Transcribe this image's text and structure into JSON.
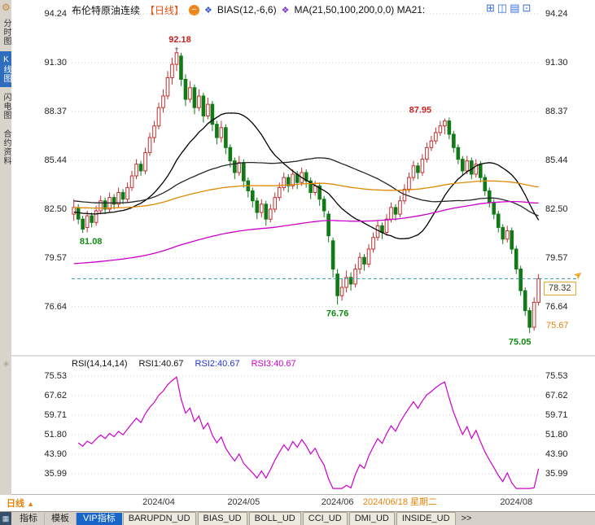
{
  "header": {
    "title": "布伦特原油连续",
    "period_tag": "【日线】",
    "minus_icon": "−",
    "bias_icon": "❖",
    "bias_label": "BIAS(12,-6,6)",
    "ma_icon": "❖",
    "ma_label": "MA(21,50,100,200,0,0) MA21:",
    "gear_icon": "⚙",
    "window_icons": [
      "⊞",
      "◫",
      "▤",
      "⊡"
    ]
  },
  "sidebar": {
    "items": [
      {
        "label": "分时图",
        "selected": false
      },
      {
        "label": "K线图",
        "selected": true
      },
      {
        "label": "闪电图",
        "selected": false
      },
      {
        "label": "合约资料",
        "selected": false
      }
    ]
  },
  "main_chart": {
    "y_ticks": [
      "94.24",
      "91.30",
      "88.37",
      "85.44",
      "82.50",
      "79.57",
      "76.64"
    ],
    "price_tag": "78.32",
    "settlement_label": "75.67",
    "arrow_icon": "➤"
  },
  "rsi_pane": {
    "icon": "✳",
    "params_label": "RSI(14,14,14)",
    "rsi1_label": "RSI1:40.67",
    "rsi2_label": "RSI2:40.67",
    "rsi3_label": "RSI3:40.67",
    "y_ticks": [
      "75.53",
      "67.62",
      "59.71",
      "51.80",
      "43.90",
      "35.99"
    ]
  },
  "x_axis": {
    "ticks": [
      {
        "label": "2024/04",
        "index": 19,
        "highlight": false
      },
      {
        "label": "2024/05",
        "index": 38,
        "highlight": false
      },
      {
        "label": "2024/06",
        "index": 59,
        "highlight": false
      },
      {
        "label": "2024/06/18 星期二",
        "index": 73,
        "highlight": true
      },
      {
        "label": "2024/08",
        "index": 99,
        "highlight": false
      }
    ],
    "period_label": "日线",
    "period_arrow": "▲"
  },
  "bottom_bar": {
    "corner_icon": "▦",
    "tabs": [
      {
        "label": "指标",
        "style": "plain",
        "selected": false
      },
      {
        "label": "模板",
        "style": "plain",
        "selected": false
      },
      {
        "label": "VIP指标",
        "style": "plain",
        "selected": true
      },
      {
        "label": "BARUPDN_UD",
        "style": "tab",
        "selected": false
      },
      {
        "label": "BIAS_UD",
        "style": "tab",
        "selected": false
      },
      {
        "label": "BOLL_UD",
        "style": "tab",
        "selected": false
      },
      {
        "label": "CCI_UD",
        "style": "tab",
        "selected": false
      },
      {
        "label": "DMI_UD",
        "style": "tab",
        "selected": false
      },
      {
        "label": "INSIDE_UD",
        "style": "tab",
        "selected": false
      },
      {
        "label": ">>",
        "style": "more",
        "selected": false
      }
    ]
  },
  "colors": {
    "up": "#c03030",
    "down": "#117a17",
    "rsi": "#cc00cc",
    "dashed_line": "#2f9bb0",
    "grid": "#cccccc",
    "annotation_up": "#cc2222",
    "annotation_down": "#118a11",
    "accent_orange": "#e8820a",
    "tab_selected_bg": "#1765c8",
    "sidebar_selected_bg": "#2e6cbe"
  },
  "chart_data": {
    "type": "candlestick+rsi",
    "symbol": "布伦特原油连续",
    "period": "日线",
    "last_price": 78.32,
    "prev_settlement": 75.67,
    "price_axis_ticks": [
      94.24,
      91.3,
      88.37,
      85.44,
      82.5,
      79.57,
      76.64
    ],
    "rsi_axis_ticks": [
      75.53,
      67.62,
      59.71,
      51.8,
      43.9,
      35.99
    ],
    "annotations": [
      {
        "text": "92.18",
        "index": 23,
        "price": 92.18,
        "type": "high",
        "marker": "+",
        "dx": 4
      },
      {
        "text": "87.95",
        "index": 83,
        "price": 87.95,
        "type": "high",
        "dx": -30
      },
      {
        "text": "81.08",
        "index": 2,
        "price": 81.08,
        "type": "low",
        "dx": 10
      },
      {
        "text": "76.76",
        "index": 59,
        "price": 76.76,
        "type": "low",
        "dx": 0
      },
      {
        "text": "75.05",
        "index": 102,
        "price": 75.05,
        "type": "low",
        "dx": -12
      }
    ],
    "ma_lines": [
      {
        "name": "MA21",
        "color": "#000000",
        "window": 21,
        "seed": 82.3
      },
      {
        "name": "MA50",
        "color": "#26262a",
        "window": 50,
        "seed": 83.0
      },
      {
        "name": "MA100",
        "color": "#e08a00",
        "window": 100,
        "seed": 82.6
      },
      {
        "name": "MA200",
        "color": "#cc00cc",
        "window": 130,
        "seed": 79.2
      }
    ],
    "rsi_window": 14,
    "candles": [
      [
        82.2,
        83.1,
        81.8,
        82.6
      ],
      [
        82.6,
        82.8,
        81.6,
        81.9
      ],
      [
        81.9,
        82.1,
        81.08,
        81.3
      ],
      [
        81.4,
        82.4,
        81.1,
        82.1
      ],
      [
        82.1,
        82.3,
        81.4,
        81.7
      ],
      [
        81.7,
        82.7,
        81.5,
        82.4
      ],
      [
        82.4,
        83.3,
        82.2,
        83.0
      ],
      [
        83.0,
        83.2,
        82.2,
        82.5
      ],
      [
        82.5,
        83.5,
        82.3,
        83.2
      ],
      [
        83.2,
        83.4,
        82.5,
        82.8
      ],
      [
        82.8,
        83.8,
        82.6,
        83.5
      ],
      [
        83.5,
        83.7,
        82.8,
        83.1
      ],
      [
        83.1,
        84.1,
        82.9,
        83.8
      ],
      [
        83.8,
        84.8,
        83.6,
        84.5
      ],
      [
        84.5,
        85.5,
        84.3,
        85.2
      ],
      [
        85.2,
        85.4,
        84.5,
        84.8
      ],
      [
        84.8,
        86.2,
        84.6,
        85.9
      ],
      [
        85.9,
        87.1,
        85.7,
        86.8
      ],
      [
        86.8,
        87.8,
        86.5,
        87.5
      ],
      [
        87.5,
        88.9,
        87.3,
        88.6
      ],
      [
        88.6,
        89.7,
        88.3,
        89.3
      ],
      [
        89.3,
        90.8,
        89.1,
        90.4
      ],
      [
        90.4,
        91.6,
        90.0,
        91.2
      ],
      [
        91.2,
        92.18,
        90.8,
        91.9
      ],
      [
        91.7,
        91.9,
        89.9,
        90.3
      ],
      [
        90.3,
        90.6,
        88.7,
        89.1
      ],
      [
        89.1,
        90.2,
        88.9,
        89.8
      ],
      [
        89.8,
        90.0,
        88.2,
        88.6
      ],
      [
        88.6,
        89.7,
        88.4,
        89.3
      ],
      [
        89.3,
        89.5,
        87.7,
        88.1
      ],
      [
        88.1,
        89.2,
        87.9,
        88.8
      ],
      [
        88.8,
        89.0,
        87.2,
        87.6
      ],
      [
        87.6,
        87.8,
        86.4,
        86.8
      ],
      [
        86.8,
        87.8,
        86.5,
        87.4
      ],
      [
        87.4,
        87.6,
        85.8,
        86.2
      ],
      [
        86.2,
        86.4,
        85.0,
        85.4
      ],
      [
        85.4,
        85.6,
        84.3,
        84.7
      ],
      [
        84.7,
        85.7,
        84.5,
        85.3
      ],
      [
        85.3,
        85.5,
        83.8,
        84.2
      ],
      [
        84.2,
        84.4,
        83.2,
        83.6
      ],
      [
        83.6,
        83.8,
        82.6,
        83.0
      ],
      [
        83.0,
        83.2,
        81.9,
        82.3
      ],
      [
        82.3,
        83.1,
        82.0,
        82.8
      ],
      [
        82.8,
        83.0,
        81.5,
        81.9
      ],
      [
        81.9,
        82.8,
        81.7,
        82.5
      ],
      [
        82.5,
        83.5,
        82.3,
        83.2
      ],
      [
        83.2,
        84.1,
        83.0,
        83.8
      ],
      [
        83.8,
        84.7,
        83.6,
        84.4
      ],
      [
        84.4,
        84.6,
        83.5,
        83.9
      ],
      [
        83.9,
        84.9,
        83.7,
        84.6
      ],
      [
        84.6,
        84.8,
        83.7,
        84.1
      ],
      [
        84.1,
        85.0,
        83.9,
        84.7
      ],
      [
        84.7,
        84.9,
        83.8,
        84.2
      ],
      [
        84.2,
        84.4,
        83.1,
        83.5
      ],
      [
        83.5,
        84.2,
        83.3,
        83.9
      ],
      [
        83.9,
        84.1,
        82.7,
        83.1
      ],
      [
        83.1,
        83.3,
        82.0,
        82.4
      ],
      [
        82.2,
        82.4,
        80.5,
        80.9
      ],
      [
        80.6,
        80.8,
        78.4,
        78.9
      ],
      [
        78.6,
        78.9,
        76.76,
        77.3
      ],
      [
        77.3,
        78.3,
        77.0,
        77.8
      ],
      [
        77.8,
        78.8,
        77.5,
        78.4
      ],
      [
        78.4,
        78.7,
        77.6,
        78.0
      ],
      [
        78.0,
        79.2,
        77.8,
        78.9
      ],
      [
        78.9,
        79.9,
        78.6,
        79.6
      ],
      [
        79.6,
        79.8,
        78.8,
        79.2
      ],
      [
        79.2,
        80.4,
        79.0,
        80.1
      ],
      [
        80.1,
        81.1,
        79.9,
        80.8
      ],
      [
        80.8,
        81.8,
        80.6,
        81.5
      ],
      [
        81.5,
        81.7,
        80.7,
        81.1
      ],
      [
        81.1,
        82.2,
        80.9,
        81.9
      ],
      [
        81.9,
        82.9,
        81.7,
        82.6
      ],
      [
        82.6,
        82.8,
        81.8,
        82.2
      ],
      [
        82.2,
        83.3,
        82.0,
        83.0
      ],
      [
        83.0,
        84.0,
        82.8,
        83.7
      ],
      [
        83.7,
        84.7,
        83.5,
        84.4
      ],
      [
        84.4,
        85.4,
        84.2,
        85.1
      ],
      [
        85.1,
        85.3,
        84.3,
        84.7
      ],
      [
        84.7,
        85.8,
        84.5,
        85.5
      ],
      [
        85.5,
        86.5,
        85.3,
        86.2
      ],
      [
        86.2,
        86.9,
        86.0,
        86.6
      ],
      [
        86.6,
        87.4,
        86.4,
        87.1
      ],
      [
        87.1,
        87.8,
        86.9,
        87.5
      ],
      [
        87.5,
        87.95,
        87.0,
        87.8
      ],
      [
        87.8,
        88.0,
        86.7,
        87.0
      ],
      [
        87.0,
        87.2,
        85.9,
        86.2
      ],
      [
        86.2,
        86.4,
        85.2,
        85.5
      ],
      [
        85.5,
        85.7,
        84.5,
        84.8
      ],
      [
        84.8,
        85.7,
        84.6,
        85.4
      ],
      [
        85.4,
        85.6,
        84.3,
        84.6
      ],
      [
        84.6,
        85.5,
        84.4,
        85.2
      ],
      [
        85.2,
        85.4,
        84.1,
        84.4
      ],
      [
        84.4,
        84.6,
        83.3,
        83.6
      ],
      [
        83.6,
        83.8,
        82.6,
        82.9
      ],
      [
        82.9,
        83.1,
        81.9,
        82.2
      ],
      [
        82.2,
        82.4,
        81.1,
        81.4
      ],
      [
        81.4,
        81.6,
        80.4,
        80.7
      ],
      [
        80.7,
        81.5,
        80.5,
        81.2
      ],
      [
        81.2,
        81.4,
        79.8,
        80.1
      ],
      [
        80.1,
        80.3,
        78.6,
        78.9
      ],
      [
        78.9,
        79.1,
        77.3,
        77.6
      ],
      [
        77.6,
        77.8,
        76.1,
        76.4
      ],
      [
        76.4,
        76.6,
        75.05,
        75.4
      ],
      [
        75.4,
        77.2,
        75.2,
        76.9
      ],
      [
        76.9,
        78.6,
        76.7,
        78.32
      ]
    ]
  }
}
